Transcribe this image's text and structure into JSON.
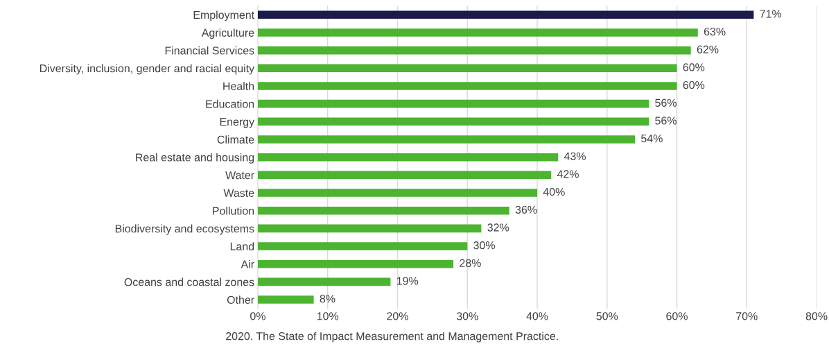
{
  "chart_data": {
    "type": "bar",
    "orientation": "horizontal",
    "categories": [
      "Employment",
      "Agriculture",
      "Financial Services",
      "Diversity, inclusion, gender and racial equity",
      "Health",
      "Education",
      "Energy",
      "Climate",
      "Real estate and housing",
      "Water",
      "Waste",
      "Pollution",
      "Biodiversity and ecosystems",
      "Land",
      "Air",
      "Oceans and coastal zones",
      "Other"
    ],
    "values": [
      71,
      63,
      62,
      60,
      60,
      56,
      56,
      54,
      43,
      42,
      40,
      36,
      32,
      30,
      28,
      19,
      8
    ],
    "value_labels": [
      "71%",
      "63%",
      "62%",
      "60%",
      "60%",
      "56%",
      "56%",
      "54%",
      "43%",
      "42%",
      "40%",
      "36%",
      "32%",
      "30%",
      "28%",
      "19%",
      "8%"
    ],
    "colors": [
      "#1c1a4b",
      "#4cb430",
      "#4cb430",
      "#4cb430",
      "#4cb430",
      "#4cb430",
      "#4cb430",
      "#4cb430",
      "#4cb430",
      "#4cb430",
      "#4cb430",
      "#4cb430",
      "#4cb430",
      "#4cb430",
      "#4cb430",
      "#4cb430",
      "#4cb430"
    ],
    "xlim": [
      0,
      80
    ],
    "xticks": [
      {
        "value": 0,
        "label": "0%"
      },
      {
        "value": 10,
        "label": "10%"
      },
      {
        "value": 20,
        "label": "20%"
      },
      {
        "value": 30,
        "label": "30%"
      },
      {
        "value": 40,
        "label": "40%"
      },
      {
        "value": 50,
        "label": "50%"
      },
      {
        "value": 60,
        "label": "60%"
      },
      {
        "value": 70,
        "label": "70%"
      },
      {
        "value": 80,
        "label": "80%"
      }
    ],
    "grid": "x",
    "legend": false,
    "annotations": [
      "2020. The State of Impact Measurement and Management Practice."
    ]
  }
}
